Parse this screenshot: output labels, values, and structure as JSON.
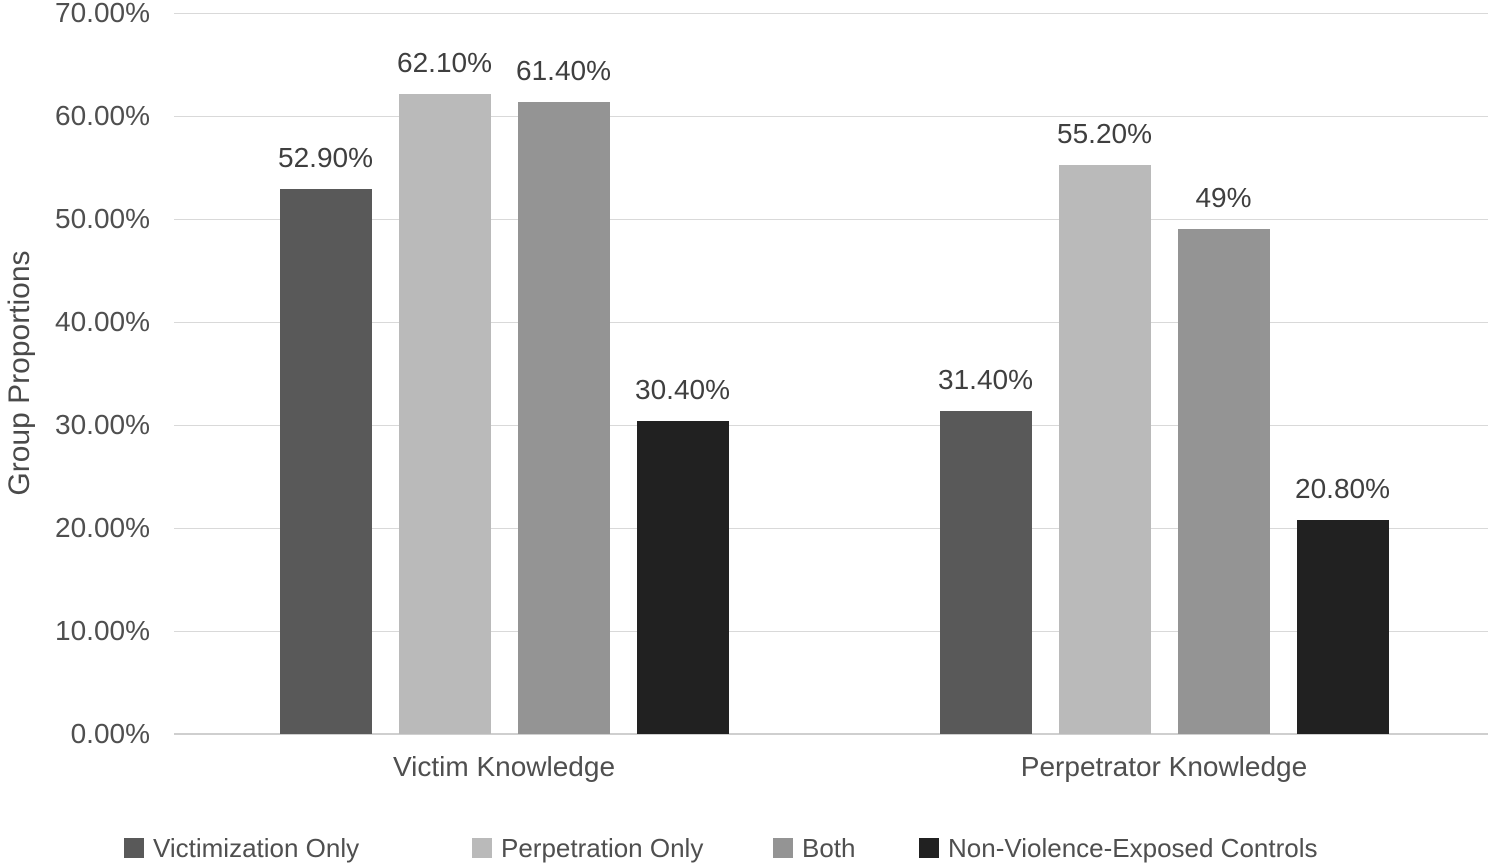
{
  "chart_data": {
    "type": "bar",
    "title": "",
    "ylabel": "Group Proportions",
    "xlabel": "",
    "categories": [
      "Victim Knowledge",
      "Perpetrator Knowledge"
    ],
    "series": [
      {
        "name": "Victimization Only",
        "color": "#595959",
        "values": [
          52.9,
          31.4
        ],
        "data_labels": [
          "52.90%",
          "31.40%"
        ]
      },
      {
        "name": "Perpetration Only",
        "color": "#bababa",
        "values": [
          62.1,
          55.2
        ],
        "data_labels": [
          "62.10%",
          "55.20%"
        ]
      },
      {
        "name": "Both",
        "color": "#949494",
        "values": [
          61.4,
          49.0
        ],
        "data_labels": [
          "61.40%",
          "49%"
        ]
      },
      {
        "name": "Non-Violence-Exposed Controls",
        "color": "#212121",
        "values": [
          30.4,
          20.8
        ],
        "data_labels": [
          "30.40%",
          "20.80%"
        ]
      }
    ],
    "y_axis": {
      "min": 0,
      "max": 70,
      "tick_step": 10,
      "tick_labels": [
        "0.00%",
        "10.00%",
        "20.00%",
        "30.00%",
        "40.00%",
        "50.00%",
        "60.00%",
        "70.00%"
      ]
    },
    "grid": "horizontal",
    "legend_position": "bottom",
    "colors": {
      "background": "#ffffff",
      "gridline": "#d9d9d9",
      "axis_line": "#cfcfcf",
      "tick_text": "#4f4f4f",
      "data_label_text": "#3f3f3f"
    }
  }
}
